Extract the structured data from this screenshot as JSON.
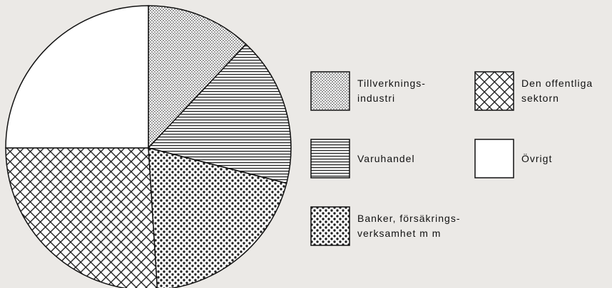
{
  "chart_data": {
    "type": "pie",
    "categories": [
      "Tillverknings-\nindustri",
      "Varuhandel",
      "Banker, försäkrings-\nverksamhet m m",
      "Den offentliga\nsektorn",
      "Övrigt"
    ],
    "values": [
      12,
      17,
      20,
      26,
      25
    ],
    "patterns": [
      "fine-dots",
      "horizontal-lines",
      "dots",
      "crosshatch",
      "none"
    ]
  }
}
